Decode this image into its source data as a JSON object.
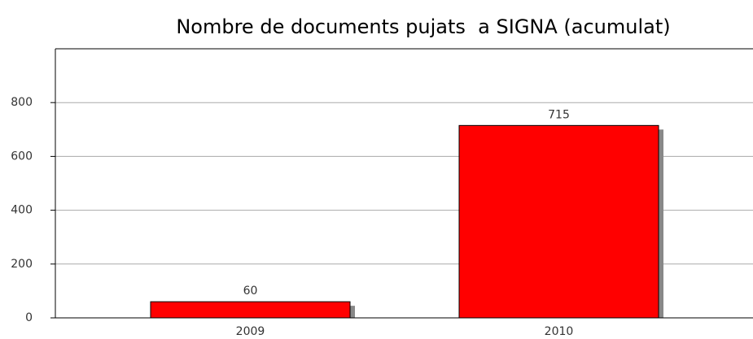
{
  "chart_data": {
    "type": "bar",
    "title": "Nombre de documents pujats  a SIGNA (acumulat)",
    "categories": [
      "2009",
      "2010"
    ],
    "values": [
      60,
      715
    ],
    "color": "#ff0000",
    "ylim": [
      0,
      1000
    ],
    "yticks": [
      0,
      200,
      400,
      600,
      800
    ],
    "grid": true
  }
}
